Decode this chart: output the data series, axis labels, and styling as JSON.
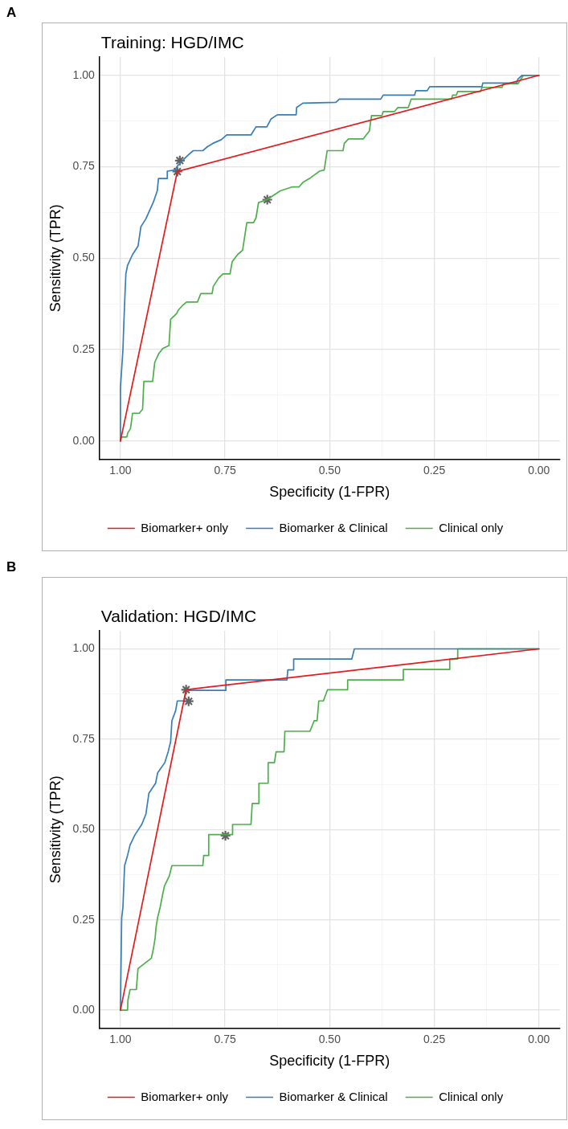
{
  "chart_data": [
    {
      "type": "line",
      "title": "Training: HGD/IMC",
      "xlabel": "Specificity (1-FPR)",
      "ylabel": "Sensitivity (TPR)",
      "annotations": [
        "A"
      ],
      "xlim": [
        1.05,
        -0.05
      ],
      "ylim": [
        -0.05,
        1.05
      ],
      "xticks": [
        {
          "value": 1,
          "label": "1.00"
        },
        {
          "value": 0.875,
          "label": null
        },
        {
          "value": 0.75,
          "label": "0.75"
        },
        {
          "value": 0.625,
          "label": null
        },
        {
          "value": 0.5,
          "label": "0.50"
        },
        {
          "value": 0.375,
          "label": null
        },
        {
          "value": 0.25,
          "label": "0.25"
        },
        {
          "value": 0.125,
          "label": null
        },
        {
          "value": 0,
          "label": "0.00"
        }
      ],
      "yticks": [
        {
          "value": 0,
          "label": "0.00"
        },
        {
          "value": 0.125,
          "label": null
        },
        {
          "value": 0.25,
          "label": "0.25"
        },
        {
          "value": 0.375,
          "label": null
        },
        {
          "value": 0.5,
          "label": "0.50"
        },
        {
          "value": 0.625,
          "label": null
        },
        {
          "value": 0.75,
          "label": "0.75"
        },
        {
          "value": 0.875,
          "label": null
        },
        {
          "value": 1,
          "label": "1.00"
        }
      ],
      "grid": true,
      "legend": "bottom",
      "marker": "none",
      "line_style": "solid",
      "series": [
        {
          "name": "Biomarker+ only",
          "color": "#e41a1c",
          "x": [
            1.0,
            0.864,
            0.0
          ],
          "values": [
            0.0,
            0.737,
            1.0
          ]
        },
        {
          "name": "Biomarker & Clinical",
          "color": "#377eb8",
          "x": [
            1.0,
            1.0,
            0.996,
            0.994,
            0.992,
            0.989,
            0.987,
            0.983,
            0.971,
            0.958,
            0.951,
            0.939,
            0.93,
            0.921,
            0.912,
            0.909,
            0.888,
            0.888,
            0.87,
            0.864,
            0.848,
            0.838,
            0.826,
            0.803,
            0.792,
            0.779,
            0.759,
            0.746,
            0.688,
            0.676,
            0.65,
            0.64,
            0.625,
            0.58,
            0.579,
            0.564,
            0.485,
            0.477,
            0.378,
            0.372,
            0.297,
            0.294,
            0.267,
            0.261,
            0.136,
            0.134,
            0.053,
            0.05,
            0.04,
            0.0
          ],
          "values": [
            0.0,
            0.144,
            0.215,
            0.249,
            0.317,
            0.404,
            0.457,
            0.48,
            0.51,
            0.533,
            0.586,
            0.608,
            0.631,
            0.654,
            0.684,
            0.718,
            0.718,
            0.738,
            0.741,
            0.752,
            0.771,
            0.782,
            0.794,
            0.794,
            0.805,
            0.814,
            0.824,
            0.837,
            0.837,
            0.859,
            0.859,
            0.881,
            0.892,
            0.892,
            0.912,
            0.924,
            0.926,
            0.935,
            0.935,
            0.946,
            0.946,
            0.958,
            0.958,
            0.969,
            0.969,
            0.979,
            0.979,
            0.99,
            1.0,
            1.0
          ]
        },
        {
          "name": "Clinical only",
          "color": "#4daf4a",
          "x": [
            1.0,
            0.998,
            0.985,
            0.982,
            0.976,
            0.971,
            0.955,
            0.947,
            0.944,
            0.923,
            0.918,
            0.909,
            0.899,
            0.884,
            0.88,
            0.866,
            0.861,
            0.852,
            0.842,
            0.816,
            0.808,
            0.781,
            0.778,
            0.765,
            0.755,
            0.738,
            0.733,
            0.72,
            0.708,
            0.698,
            0.682,
            0.676,
            0.67,
            0.65,
            0.618,
            0.589,
            0.573,
            0.564,
            0.548,
            0.535,
            0.524,
            0.513,
            0.506,
            0.468,
            0.465,
            0.455,
            0.42,
            0.405,
            0.4,
            0.375,
            0.372,
            0.345,
            0.337,
            0.312,
            0.305,
            0.209,
            0.206,
            0.197,
            0.194,
            0.139,
            0.136,
            0.088,
            0.085,
            0.05,
            0.037,
            0.0
          ],
          "values": [
            0.0,
            0.011,
            0.011,
            0.023,
            0.034,
            0.076,
            0.076,
            0.087,
            0.163,
            0.163,
            0.215,
            0.238,
            0.253,
            0.261,
            0.333,
            0.348,
            0.359,
            0.37,
            0.38,
            0.38,
            0.403,
            0.403,
            0.423,
            0.446,
            0.457,
            0.457,
            0.49,
            0.51,
            0.522,
            0.597,
            0.597,
            0.61,
            0.652,
            0.66,
            0.684,
            0.695,
            0.695,
            0.707,
            0.718,
            0.729,
            0.738,
            0.741,
            0.794,
            0.794,
            0.814,
            0.826,
            0.826,
            0.848,
            0.89,
            0.89,
            0.901,
            0.901,
            0.912,
            0.912,
            0.935,
            0.935,
            0.946,
            0.946,
            0.956,
            0.956,
            0.967,
            0.967,
            0.977,
            0.977,
            1.0,
            1.0
          ]
        },
        {
          "type": "scatter",
          "marker": "cross",
          "color": "#636363",
          "x": [
            0.858,
            0.864,
            0.649
          ],
          "values": [
            0.767,
            0.737,
            0.66
          ]
        }
      ]
    },
    {
      "type": "line",
      "title": "Validation: HGD/IMC",
      "xlabel": "Specificity (1-FPR)",
      "ylabel": "Sensitivity (TPR)",
      "annotations": [
        "B"
      ],
      "xlim": [
        1.05,
        -0.05
      ],
      "ylim": [
        -0.05,
        1.05
      ],
      "xticks": [
        {
          "value": 1,
          "label": "1.00"
        },
        {
          "value": 0.875,
          "label": null
        },
        {
          "value": 0.75,
          "label": "0.75"
        },
        {
          "value": 0.625,
          "label": null
        },
        {
          "value": 0.5,
          "label": "0.50"
        },
        {
          "value": 0.375,
          "label": null
        },
        {
          "value": 0.25,
          "label": "0.25"
        },
        {
          "value": 0.125,
          "label": null
        },
        {
          "value": 0,
          "label": "0.00"
        }
      ],
      "yticks": [
        {
          "value": 0,
          "label": "0.00"
        },
        {
          "value": 0.125,
          "label": null
        },
        {
          "value": 0.25,
          "label": "0.25"
        },
        {
          "value": 0.375,
          "label": null
        },
        {
          "value": 0.5,
          "label": "0.50"
        },
        {
          "value": 0.625,
          "label": null
        },
        {
          "value": 0.75,
          "label": "0.75"
        },
        {
          "value": 0.875,
          "label": null
        },
        {
          "value": 1,
          "label": "1.00"
        }
      ],
      "grid": true,
      "legend": "bottom",
      "marker": "none",
      "line_style": "solid",
      "series": [
        {
          "name": "Biomarker+ only",
          "color": "#e41a1c",
          "x": [
            1.0,
            0.843,
            0.0
          ],
          "values": [
            0.0,
            0.887,
            1.0
          ]
        },
        {
          "name": "Biomarker & Clinical",
          "color": "#377eb8",
          "x": [
            1.0,
            0.997,
            0.994,
            0.99,
            0.983,
            0.977,
            0.965,
            0.949,
            0.939,
            0.932,
            0.916,
            0.911,
            0.894,
            0.886,
            0.88,
            0.877,
            0.868,
            0.864,
            0.848,
            0.843,
            0.748,
            0.748,
            0.602,
            0.6,
            0.586,
            0.586,
            0.447,
            0.441,
            0.0
          ],
          "values": [
            0.0,
            0.255,
            0.285,
            0.4,
            0.428,
            0.457,
            0.486,
            0.514,
            0.543,
            0.6,
            0.628,
            0.657,
            0.685,
            0.715,
            0.743,
            0.801,
            0.829,
            0.856,
            0.856,
            0.885,
            0.885,
            0.914,
            0.914,
            0.942,
            0.942,
            0.972,
            0.972,
            1.0,
            1.0
          ]
        },
        {
          "name": "Clinical only",
          "color": "#4daf4a",
          "x": [
            1.0,
            0.983,
            0.982,
            0.977,
            0.962,
            0.958,
            0.926,
            0.921,
            0.917,
            0.915,
            0.911,
            0.905,
            0.9,
            0.895,
            0.883,
            0.877,
            0.803,
            0.801,
            0.789,
            0.789,
            0.732,
            0.732,
            0.688,
            0.685,
            0.669,
            0.669,
            0.647,
            0.647,
            0.632,
            0.628,
            0.609,
            0.607,
            0.547,
            0.537,
            0.53,
            0.526,
            0.515,
            0.505,
            0.457,
            0.457,
            0.324,
            0.324,
            0.213,
            0.213,
            0.194,
            0.194,
            0.0
          ],
          "values": [
            0.0,
            0.0,
            0.028,
            0.057,
            0.057,
            0.115,
            0.144,
            0.171,
            0.2,
            0.228,
            0.257,
            0.285,
            0.315,
            0.343,
            0.372,
            0.4,
            0.4,
            0.428,
            0.428,
            0.486,
            0.486,
            0.514,
            0.514,
            0.572,
            0.572,
            0.628,
            0.628,
            0.685,
            0.685,
            0.715,
            0.715,
            0.772,
            0.772,
            0.801,
            0.801,
            0.856,
            0.856,
            0.887,
            0.887,
            0.914,
            0.914,
            0.943,
            0.943,
            0.972,
            0.972,
            1.0,
            1.0
          ]
        },
        {
          "type": "scatter",
          "marker": "cross",
          "color": "#636363",
          "x": [
            0.843,
            0.837,
            0.749
          ],
          "values": [
            0.887,
            0.855,
            0.483
          ]
        }
      ]
    }
  ]
}
